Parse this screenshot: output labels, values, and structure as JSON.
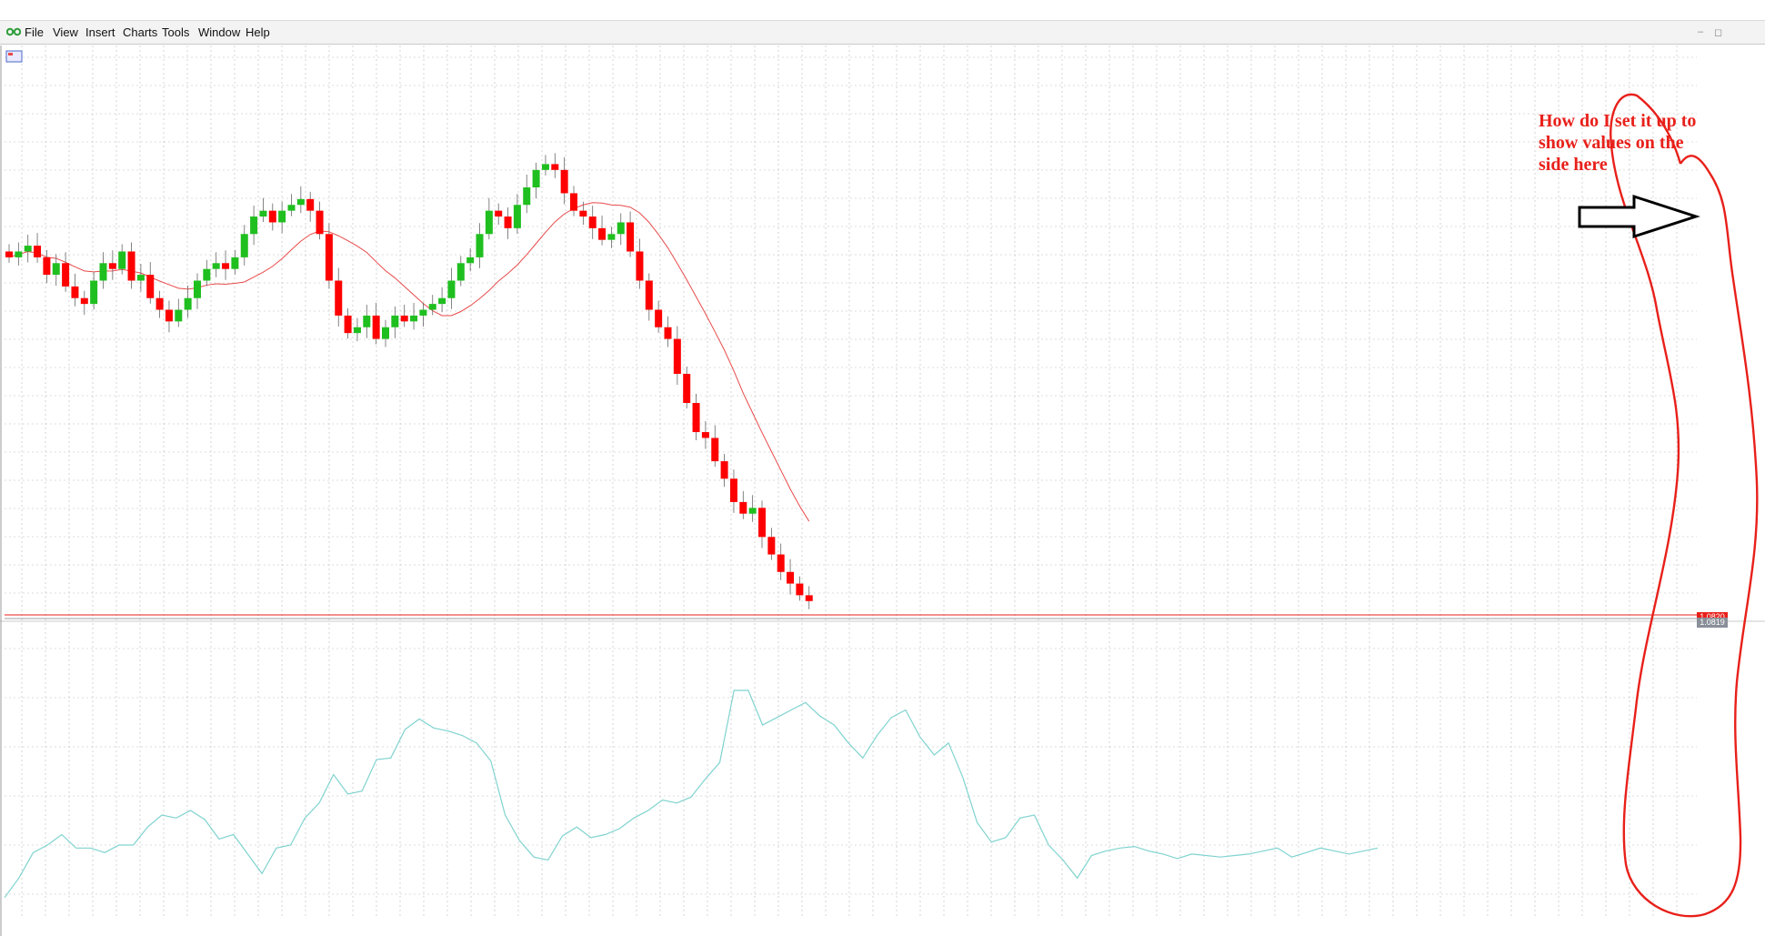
{
  "menu": {
    "items": [
      {
        "label": "File"
      },
      {
        "label": "View"
      },
      {
        "label": "Insert"
      },
      {
        "label": "Charts"
      },
      {
        "label": "Tools"
      },
      {
        "label": "Window"
      },
      {
        "label": "Help"
      }
    ]
  },
  "window_controls": {
    "minimize": "–",
    "restore": "◻"
  },
  "icons": {
    "app": "trading-app-icon",
    "chart": "chart-icon"
  },
  "colors": {
    "bull_candle": "#1fbf1f",
    "bear_candle": "#ff0000",
    "moving_average": "#e84a4a",
    "oscillator": "#7fd3cf",
    "grid": "#b9b9b9",
    "price_line": "#e8201a",
    "annotation": "#e8201a"
  },
  "price_tags": {
    "bid": "1.0820",
    "ask": "1.0819"
  },
  "annotation": {
    "text": "How do I set it up to show values on the side here"
  },
  "chart_data": {
    "type": "candlestick",
    "main_panel": {
      "description_series": [
        {
          "name": "candles",
          "values": [
            0.62,
            0.63,
            0.64,
            0.62,
            0.59,
            0.61,
            0.57,
            0.55,
            0.54,
            0.58,
            0.61,
            0.6,
            0.63,
            0.58,
            0.59,
            0.55,
            0.53,
            0.51,
            0.53,
            0.55,
            0.58,
            0.6,
            0.61,
            0.6,
            0.62,
            0.66,
            0.69,
            0.7,
            0.68,
            0.7,
            0.71,
            0.72,
            0.7,
            0.66,
            0.58,
            0.52,
            0.49,
            0.5,
            0.52,
            0.48,
            0.5,
            0.52,
            0.51,
            0.52,
            0.53,
            0.54,
            0.55,
            0.58,
            0.61,
            0.62,
            0.66,
            0.7,
            0.69,
            0.67,
            0.71,
            0.74,
            0.77,
            0.78,
            0.77,
            0.73,
            0.7,
            0.69,
            0.67,
            0.65,
            0.66,
            0.68,
            0.63,
            0.58,
            0.53,
            0.5,
            0.48,
            0.42,
            0.37,
            0.32,
            0.31,
            0.27,
            0.24,
            0.2,
            0.18,
            0.19,
            0.14,
            0.11,
            0.08,
            0.06,
            0.04,
            0.03
          ]
        }
      ],
      "moving_average_label": "",
      "horizontal_line": "current price"
    },
    "sub_panel": {
      "type": "line",
      "series": [
        {
          "values": [
            5,
            18,
            35,
            40,
            47,
            38,
            38,
            35,
            40,
            40,
            52,
            60,
            58,
            63,
            57,
            44,
            47,
            34,
            21,
            38,
            40,
            58,
            68,
            87,
            74,
            76,
            97,
            98,
            117,
            124,
            118,
            116,
            113,
            108,
            96,
            60,
            43,
            32,
            30,
            46,
            52,
            45,
            47,
            51,
            58,
            63,
            70,
            68,
            72,
            84,
            95,
            143,
            143,
            120,
            125,
            130,
            135,
            126,
            120,
            108,
            98,
            113,
            125,
            130,
            112,
            100,
            108,
            85,
            55,
            42,
            45,
            58,
            60,
            40,
            30,
            18,
            33,
            36,
            38,
            39,
            36,
            34,
            31,
            34,
            33,
            32,
            33,
            34,
            36,
            38,
            32,
            35,
            38,
            36,
            34,
            36,
            38
          ]
        }
      ]
    }
  }
}
